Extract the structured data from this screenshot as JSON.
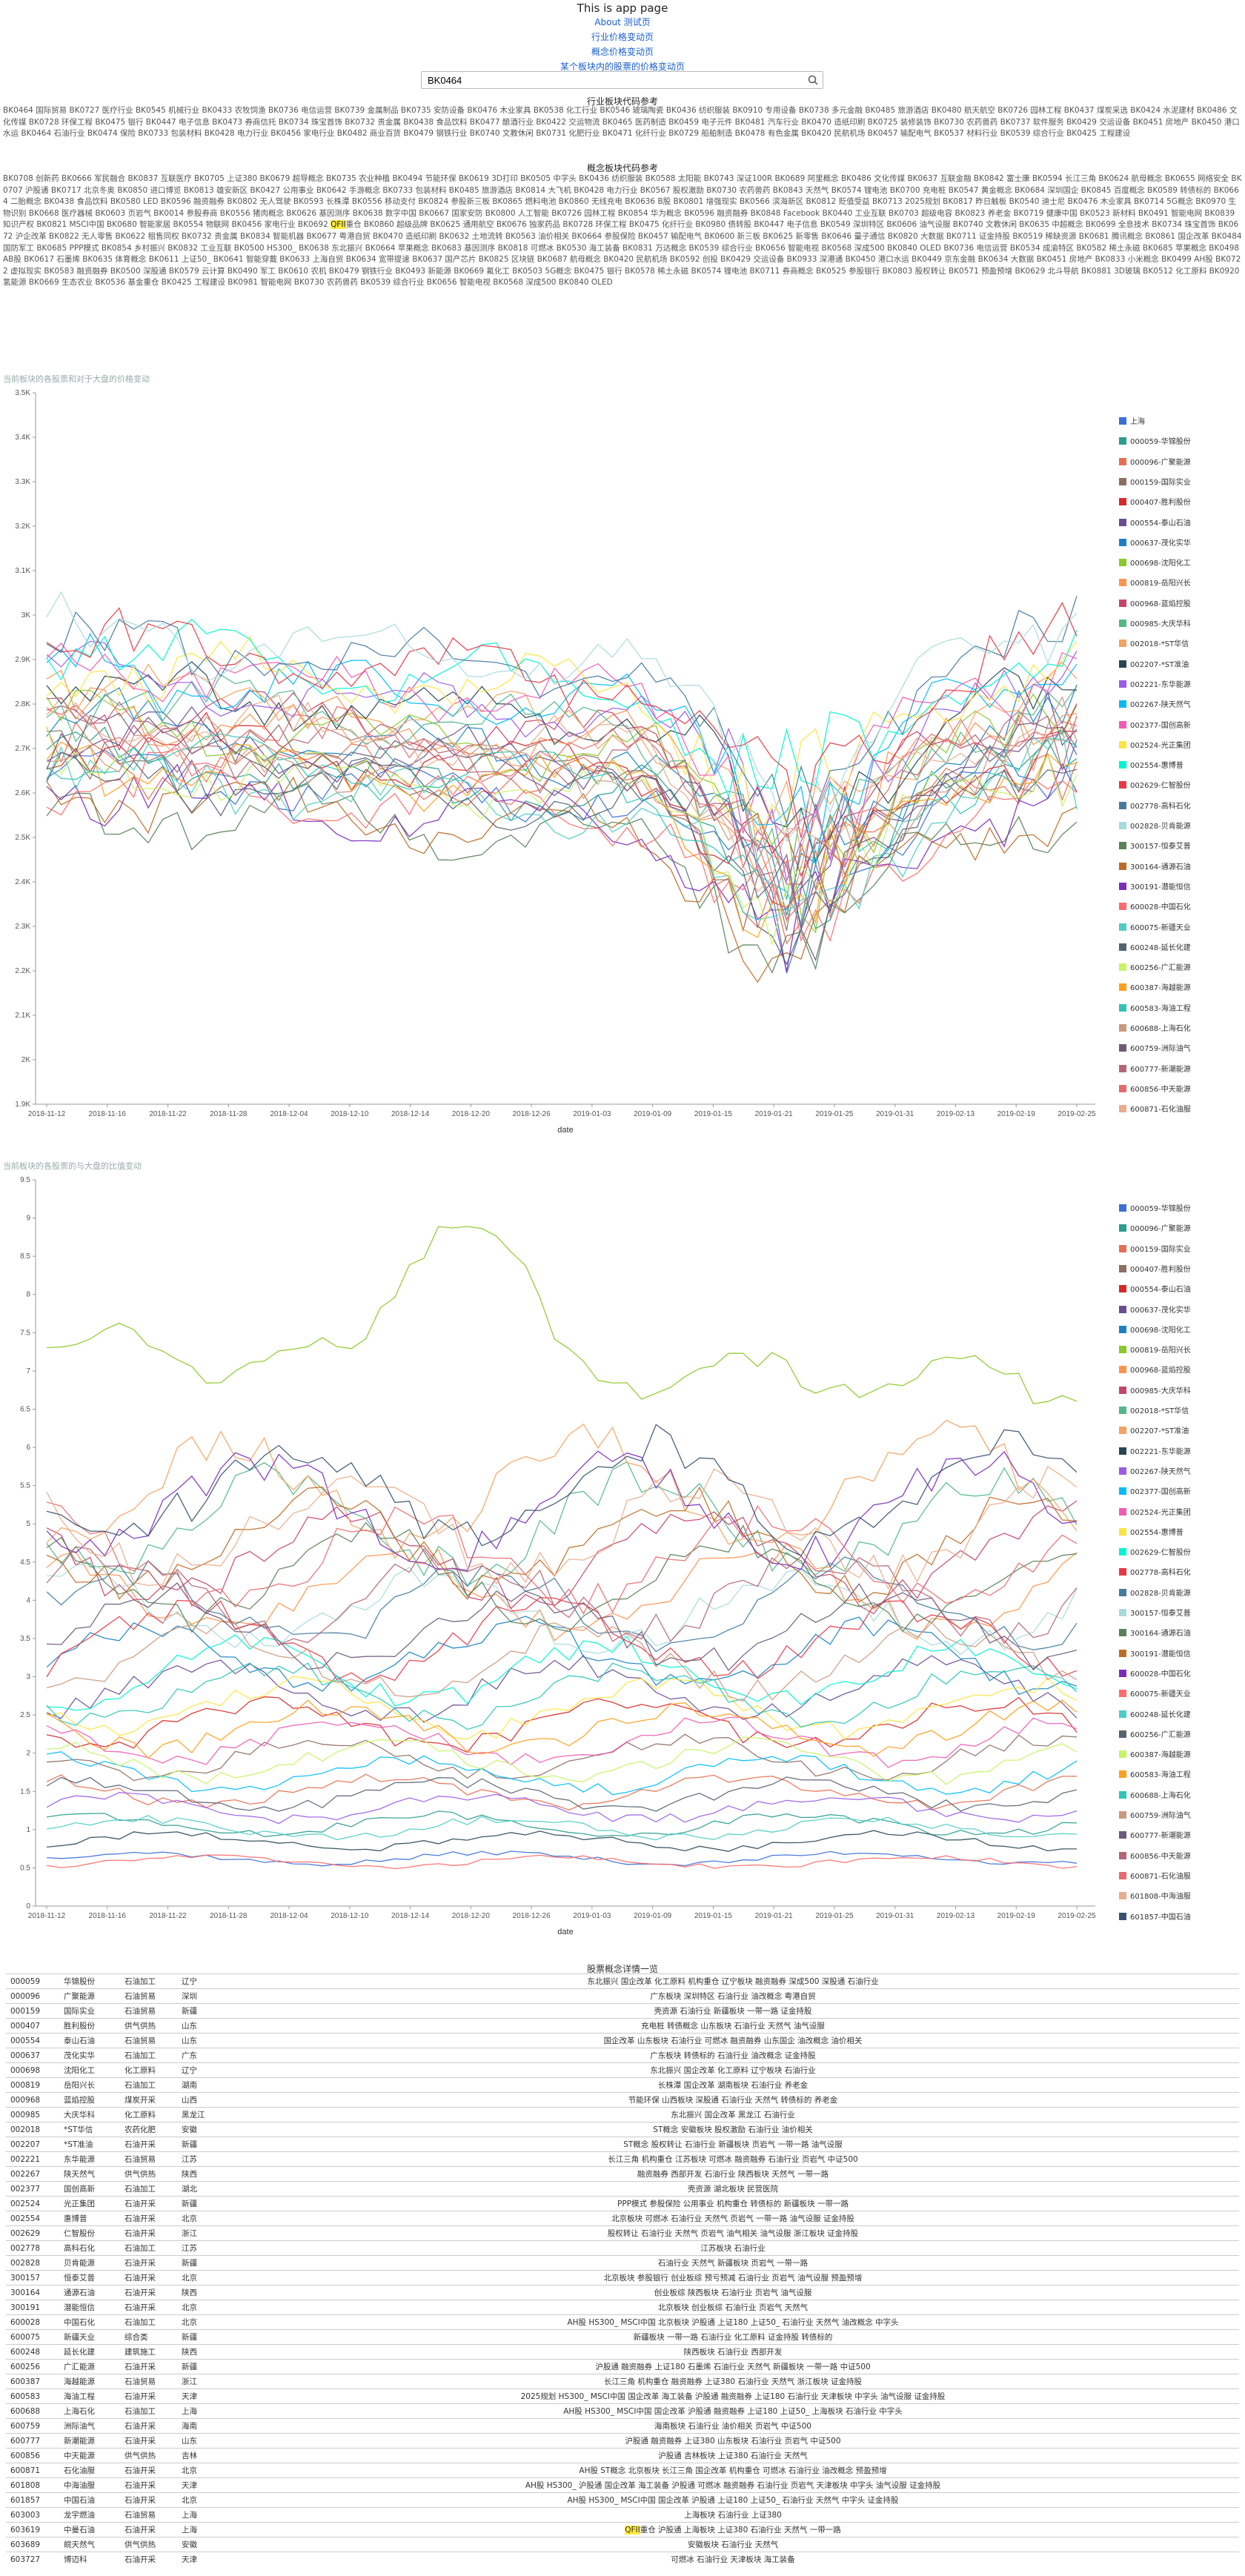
{
  "header": {
    "title": "This is app page",
    "links": [
      "About 测试页",
      "行业价格变动页",
      "概念价格变动页",
      "某个板块内的股票的价格变动页"
    ]
  },
  "search": {
    "value": "BK0464",
    "icon": "search-icon"
  },
  "industry": {
    "title": "行业板块代码参考",
    "text": "BK0464 国际贸易 BK0727 医疗行业 BK0545 机械行业 BK0433 农牧饲渔 BK0736 电信运营 BK0739 金属制品 BK0735 安防设备 BK0476 木业家具 BK0538 化工行业 BK0546 玻璃陶瓷 BK0436 纺织服装 BK0910 专用设备 BK0738 多元金融 BK0485 旅游酒店 BK0480 航天航空 BK0726 园林工程 BK0437 煤炭采选 BK0424 水泥建材 BK0486 文化传媒 BK0728 环保工程 BK0475 银行 BK0447 电子信息 BK0473 券商信托 BK0734 珠宝首饰 BK0732 贵金属 BK0438 食品饮料 BK0477 酿酒行业 BK0422 交运物流 BK0465 医药制造 BK0459 电子元件 BK0481 汽车行业 BK0470 造纸印刷 BK0725 装修装饰 BK0730 农药兽药 BK0737 软件服务 BK0429 交运设备 BK0451 房地产 BK0450 港口水运 BK0464 石油行业 BK0474 保险 BK0733 包装材料 BK0428 电力行业 BK0456 家电行业 BK0482 商业百货 BK0479 钢铁行业 BK0740 文教休闲 BK0731 化肥行业 BK0471 化纤行业 BK0729 船舶制造 BK0478 有色金属 BK0420 民航机场 BK0457 输配电气 BK0537 材料行业 BK0539 综合行业 BK0425 工程建设"
  },
  "concept": {
    "title": "概念板块代码参考",
    "text": "BK0708 创新药 BK0666 军民融合 BK0837 互联医疗 BK0705 上证380 BK0679 超导概念 BK0735 农业种植 BK0494 节能环保 BK0619 3D打印 BK0505 中字头 BK0436 纺织服装 BK0588 太阳能 BK0743 深证100R BK0689 阿里概念 BK0486 文化传媒 BK0637 互联金融 BK0842 富士康 BK0594 长江三角 BK0624 航母概念 BK0655 网络安全 BK0707 沪股通 BK0717 北京冬奥 BK0850 进口博览 BK0813 雄安新区 BK0427 公用事业 BK0642 手游概念 BK0733 包装材料 BK0485 旅游酒店 BK0814 大飞机 BK0428 电力行业 BK0567 股权激励 BK0730 农药兽药 BK0843 天然气 BK0574 锂电池 BK0700 充电桩 BK0547 黄金概念 BK0684 深圳国企 BK0845 百度概念 BK0589 转债标的 BK0664 二胎概念 BK0438 食品饮料 BK0580 LED BK0596 融资融券 BK0802 无人驾驶 BK0593 长株潭 BK0556 移动支付 BK0824 参股新三板 BK0865 燃料电池 BK0860 无线充电 BK0636 B股 BK0801 增强现实 BK0566 滨海新区 BK0812 贬值受益 BK0713 2025规划 BK0817 昨日触板 BK0540 迪士尼 BK0476 木业家具 BK0714 5G概念 BK0970 生物识别 BK0668 医疗器械 BK0603 页岩气 BK0014 参股券商 BK0556 猪肉概念 BK0626 基因测序 BK0638 数字中国 BK0667 国家安防 BK0800 人工智能 BK0726 园林工程 BK0854 华为概念 BK0596 融资融券 BK0848 Facebook BK0440 工业互联 BK0703 超级电容 BK0823 养老金 BK0719 健康中国 BK0523 新材料 BK0491 智能电网 BK0839 知识产权 BK0821 MSCI中国 BK0680 智能家居 BK0554 物联网 BK0456 家电行业 BK0692 QFII重仓 BK0860 超级品牌 BK0625 通用航空 BK0676 独家药品 BK0728 环保工程 BK0475 化纤行业 BK0980 债转股 BK0447 电子信息 BK0549 深圳特区 BK0606 油气设服 BK0740 文教休闲 BK0635 中超概念 BK0699 全息技术 BK0734 珠宝首饰 BK0672 沪企改革 BK0822 无人零售 BK0622 租售同权 BK0732 贵金属 BK0834 智能机器 BK0677 粤港自贸 BK0470 造纸印刷 BK0632 土地流转 BK0563 油价相关 BK0664 参股保险 BK0457 输配电气 BK0600 新三板 BK0625 新零售 BK0646 量子通信 BK0820 大数据 BK0711 证金持股 BK0519 稀缺资源 BK0681 腾讯概念 BK0861 国企改革 BK0484 国防军工 BK0685 PPP模式 BK0854 乡村振兴 BK0832 工业互联 BK0500 HS300_ BK0638 东北振兴 BK0664 苹果概念 BK0683 基因测序 BK0818 可燃冰 BK0530 海工装备 BK0831 万达概念 BK0539 综合行业 BK0656 智能电视 BK0568 深成500 BK0840 OLED BK0736 电信运营 BK0534 成渝特区 BK0582 稀土永磁 BK0685 苹果概念 BK0498 AB股 BK0617 石墨烯 BK0635 体育概念 BK0611 上证50_ BK0641 智能穿戴 BK0633 上海自贸 BK0634 宽带提速 BK0637 国产芯片 BK0825 区块链 BK0687 航母概念 BK0420 民航机场 BK0592 创投 BK0429 交运设备 BK0933 深港通 BK0450 港口水运 BK0449 京东金融 BK0634 大数据 BK0451 房地产 BK0833 小米概念 BK0499 AH股 BK0722 虚拟现实 BK0583 融资融券 BK0500 深股通 BK0579 云计算 BK0490 军工 BK0610 农机 BK0479 钢铁行业 BK0493 新能源 BK0669 氟化工 BK0503 5G概念 BK0475 银行 BK0578 稀土永磁 BK0574 锂电池 BK0711 券商概念 BK0525 参股银行 BK0803 股权转让 BK0571 预盈预增 BK0629 北斗导航 BK0881 3D玻璃 BK0512 化工原料 BK0920 氢能源 BK0669 生态农业 BK0536 基金重仓 BK0425 工程建设 BK0981 智能电网 BK0730 农药兽药 BK0539 综合行业 BK0656 智能电视 BK0568 深成500 BK0840 OLED"
  },
  "chart1": {
    "caption": "当前板块的各股票和对于大盘的价格变动",
    "xlabel": "date"
  },
  "chart2": {
    "caption": "当前板块的各股票的与大盘的比值变动",
    "xlabel": "date"
  },
  "chart_data": [
    {
      "type": "line",
      "title": "",
      "xlabel": "date",
      "ylabel": "",
      "ylim": [
        1900,
        3500
      ],
      "yticks": [
        "1.9K",
        "2K",
        "2.1K",
        "2.2K",
        "2.3K",
        "2.4K",
        "2.5K",
        "2.6K",
        "2.7K",
        "2.8K",
        "2.9K",
        "3K",
        "3.1K",
        "3.2K",
        "3.3K",
        "3.4K",
        "3.5K"
      ],
      "x": [
        "2018-11-12",
        "2018-11-16",
        "2018-11-22",
        "2018-11-28",
        "2018-12-04",
        "2018-12-10",
        "2018-12-14",
        "2018-12-20",
        "2018-12-26",
        "2019-01-03",
        "2019-01-09",
        "2019-01-15",
        "2019-01-21",
        "2019-01-25",
        "2019-01-31",
        "2019-02-13",
        "2019-02-19",
        "2019-02-25"
      ],
      "legend_position": "right",
      "series_names": [
        "上海",
        "000059-华锦股份",
        "000096-广聚能源",
        "000159-国际实业",
        "000407-胜利股份",
        "000554-泰山石油",
        "000637-茂化实华",
        "000698-沈阳化工",
        "000819-岳阳兴长",
        "000968-蓝焰控股",
        "000985-大庆华科",
        "002018-*ST华信",
        "002207-*ST准油",
        "002221-东华能源",
        "002267-陕天然气",
        "002377-国创高新",
        "002524-光正集团",
        "002554-惠博普",
        "002629-仁智股份",
        "002778-高科石化",
        "002828-贝肯能源",
        "300157-恒泰艾普",
        "300164-通源石油",
        "300191-潜能恒信",
        "600028-中国石化",
        "600075-新疆天业",
        "600248-延长化建",
        "600256-广汇能源",
        "600387-海越能源",
        "600583-海油工程",
        "600688-上海石化",
        "600759-洲际油气",
        "600777-新潮能源",
        "600856-中天能源",
        "600871-石化油服"
      ]
    },
    {
      "type": "line",
      "title": "",
      "xlabel": "date",
      "ylabel": "",
      "ylim": [
        0,
        9.5
      ],
      "yticks": [
        "0",
        "0.5",
        "1",
        "1.5",
        "2",
        "2.5",
        "3",
        "3.5",
        "4",
        "4.5",
        "5",
        "5.5",
        "6",
        "6.5",
        "7",
        "7.5",
        "8",
        "8.5",
        "9",
        "9.5"
      ],
      "x": [
        "2018-11-12",
        "2018-11-16",
        "2018-11-22",
        "2018-11-28",
        "2018-12-04",
        "2018-12-10",
        "2018-12-14",
        "2018-12-20",
        "2018-12-26",
        "2019-01-03",
        "2019-01-09",
        "2019-01-15",
        "2019-01-21",
        "2019-01-25",
        "2019-01-31",
        "2019-02-13",
        "2019-02-19",
        "2019-02-25"
      ],
      "legend_position": "right",
      "series_names": [
        "000059-华锦股份",
        "000096-广聚能源",
        "000159-国际实业",
        "000407-胜利股份",
        "000554-泰山石油",
        "000637-茂化实华",
        "000698-沈阳化工",
        "000819-岳阳兴长",
        "000968-蓝焰控股",
        "000985-大庆华科",
        "002018-*ST华信",
        "002207-*ST准油",
        "002221-东华能源",
        "002267-陕天然气",
        "002377-国创高新",
        "002524-光正集团",
        "002554-惠博普",
        "002629-仁智股份",
        "002778-高科石化",
        "002828-贝肯能源",
        "300157-恒泰艾普",
        "300164-通源石油",
        "300191-潜能恒信",
        "600028-中国石化",
        "600075-新疆天业",
        "600248-延长化建",
        "600256-广汇能源",
        "600387-海越能源",
        "600583-海油工程",
        "600688-上海石化",
        "600759-洲际油气",
        "600777-新潮能源",
        "600856-中天能源",
        "600871-石化油服",
        "601808-中海油服",
        "601857-中国石油"
      ]
    }
  ],
  "colors": [
    "#3b6fd6",
    "#2a9d8f",
    "#e76f51",
    "#8d6e63",
    "#d62828",
    "#6a4c93",
    "#1982c4",
    "#8ac926",
    "#ff924c",
    "#c44569",
    "#52b788",
    "#f4a261",
    "#264653",
    "#9b5de5",
    "#00bbf9",
    "#f15bb5",
    "#fee440",
    "#00f5d4",
    "#e63946",
    "#457b9d",
    "#a8dadc",
    "#588157",
    "#bc6c25",
    "#7b2cbf",
    "#ff6b6b",
    "#4ecdc4",
    "#556270",
    "#c7f464",
    "#ff9f1c",
    "#2ec4b6",
    "#cb997e",
    "#6d597a",
    "#b56576",
    "#e56b6f",
    "#eaac8b",
    "#355070"
  ],
  "table": {
    "title": "股票概念详情一览",
    "rows": [
      [
        "000059",
        "华锦股份",
        "石油加工",
        "辽宁",
        "东北振兴 国企改革 化工原料 机构重仓 辽宁板块 融资融券 深成500 深股通 石油行业"
      ],
      [
        "000096",
        "广聚能源",
        "石油贸易",
        "深圳",
        "广东板块 深圳特区 石油行业 油改概念 粤港自贸"
      ],
      [
        "000159",
        "国际实业",
        "石油贸易",
        "新疆",
        "壳资源 石油行业 新疆板块 一带一路 证金持股"
      ],
      [
        "000407",
        "胜利股份",
        "供气供热",
        "山东",
        "充电桩 转债概念 山东板块 石油行业 天然气 油气设服"
      ],
      [
        "000554",
        "泰山石油",
        "石油贸易",
        "山东",
        "国企改革 山东板块 石油行业 可燃冰 融资融券 山东国企 油改概念 油价相关"
      ],
      [
        "000637",
        "茂化实华",
        "石油加工",
        "广东",
        "广东板块 转债标的 石油行业 油改概念 证金持股"
      ],
      [
        "000698",
        "沈阳化工",
        "化工原料",
        "辽宁",
        "东北振兴 国企改革 化工原料 辽宁板块 石油行业"
      ],
      [
        "000819",
        "岳阳兴长",
        "石油加工",
        "湖南",
        "长株潭 国企改革 湖南板块 石油行业 养老金"
      ],
      [
        "000968",
        "蓝焰控股",
        "煤炭开采",
        "山西",
        "节能环保 山西板块 深股通 石油行业 天然气 转债标的 养老金"
      ],
      [
        "000985",
        "大庆华科",
        "化工原料",
        "黑龙江",
        "东北振兴 国企改革 黑龙江 石油行业"
      ],
      [
        "002018",
        "*ST华信",
        "农药化肥",
        "安徽",
        "ST概念 安徽板块 股权激励 石油行业 油价相关"
      ],
      [
        "002207",
        "*ST准油",
        "石油开采",
        "新疆",
        "ST概念 股权转让 石油行业 新疆板块 页岩气 一带一路 油气设服"
      ],
      [
        "002221",
        "东华能源",
        "石油贸易",
        "江苏",
        "长江三角 机构重仓 江苏板块 可燃冰 融资融券 石油行业 页岩气 中证500"
      ],
      [
        "002267",
        "陕天然气",
        "供气供热",
        "陕西",
        "融资融券 西部开发 石油行业 陕西板块 天然气 一带一路"
      ],
      [
        "002377",
        "国创高新",
        "石油加工",
        "湖北",
        "壳资源 湖北板块 民营医院"
      ],
      [
        "002524",
        "光正集团",
        "石油开采",
        "新疆",
        "PPP模式 参股保险 公用事业 机构重仓 转债标的 新疆板块 一带一路"
      ],
      [
        "002554",
        "惠博普",
        "石油开采",
        "北京",
        "北京板块 可燃冰 石油行业 天然气 页岩气 一带一路 油气设服 证金持股"
      ],
      [
        "002629",
        "仁智股份",
        "石油开采",
        "浙江",
        "股权转让 石油行业 天然气 页岩气 油气相关 油气设服 浙江板块 证金持股"
      ],
      [
        "002778",
        "高科石化",
        "石油加工",
        "江苏",
        "江苏板块 石油行业"
      ],
      [
        "002828",
        "贝肯能源",
        "石油开采",
        "新疆",
        "石油行业 天然气 新疆板块 页岩气 一带一路"
      ],
      [
        "300157",
        "恒泰艾普",
        "石油开采",
        "北京",
        "北京板块 参股银行 创业板综 预亏预减 石油行业 页岩气 油气设服 预盈预增"
      ],
      [
        "300164",
        "通源石油",
        "石油开采",
        "陕西",
        "创业板综 陕西板块 石油行业 页岩气 油气设服"
      ],
      [
        "300191",
        "潜能恒信",
        "石油开采",
        "北京",
        "北京板块 创业板综 石油行业 页岩气 天然气"
      ],
      [
        "600028",
        "中国石化",
        "石油加工",
        "北京",
        "AH股 HS300_ MSCI中国 北京板块 沪股通 上证180 上证50_ 石油行业 天然气 油改概念 中字头"
      ],
      [
        "600075",
        "新疆天业",
        "综合类",
        "新疆",
        "新疆板块 一带一路 石油行业 化工原料 证金持股 转债标的"
      ],
      [
        "600248",
        "延长化建",
        "建筑施工",
        "陕西",
        "陕西板块 石油行业 西部开发"
      ],
      [
        "600256",
        "广汇能源",
        "石油开采",
        "新疆",
        "沪股通 融资融券 上证180 石墨烯 石油行业 天然气 新疆板块 一带一路 中证500"
      ],
      [
        "600387",
        "海越能源",
        "石油贸易",
        "浙江",
        "长江三角 机构重仓 融资融券 上证380 石油行业 天然气 浙江板块 证金持股"
      ],
      [
        "600583",
        "海油工程",
        "石油开采",
        "天津",
        "2025规划 HS300_ MSCI中国 国企改革 海工装备 沪股通 融资融券 上证180 石油行业 天津板块 中字头 油气设服 证金持股"
      ],
      [
        "600688",
        "上海石化",
        "石油加工",
        "上海",
        "AH股 HS300_ MSCI中国 国企改革 沪股通 融资融券 上证180 上证50_ 上海板块 石油行业 中字头"
      ],
      [
        "600759",
        "洲际油气",
        "石油开采",
        "海南",
        "海南板块 石油行业 油价相关 页岩气 中证500"
      ],
      [
        "600777",
        "新潮能源",
        "石油开采",
        "山东",
        "沪股通 融资融券 上证380 山东板块 石油行业 页岩气 中证500"
      ],
      [
        "600856",
        "中天能源",
        "供气供热",
        "吉林",
        "沪股通 吉林板块 上证380 石油行业 天然气"
      ],
      [
        "600871",
        "石化油服",
        "石油开采",
        "北京",
        "AH股 ST概念 北京板块 长江三角 国企改革 机构重仓 可燃冰 石油行业 油改概念 预盈预增"
      ],
      [
        "601808",
        "中海油服",
        "石油开采",
        "天津",
        "AH股 HS300_ 沪股通 国企改革 海工装备 沪股通 可燃冰 融资融券 石油行业 页岩气 天津板块 中字头 油气设服 证金持股"
      ],
      [
        "601857",
        "中国石油",
        "石油开采",
        "北京",
        "AH股 HS300_ MSCI中国 国企改革 沪股通 上证180 上证50_ 石油行业 天然气 中字头 证金持股"
      ],
      [
        "603003",
        "龙宇燃油",
        "石油贸易",
        "上海",
        "上海板块 石油行业 上证380"
      ],
      [
        "603619",
        "中曼石油",
        "石油开采",
        "上海",
        "QFII重仓 沪股通 上海板块 上证380 石油行业 天然气 一带一路"
      ],
      [
        "603689",
        "皖天然气",
        "供气供热",
        "安徽",
        "安徽板块 石油行业 天然气"
      ],
      [
        "603727",
        "博迈科",
        "石油开采",
        "天津",
        "可燃冰 石油行业 天津板块 海工装备"
      ]
    ]
  }
}
